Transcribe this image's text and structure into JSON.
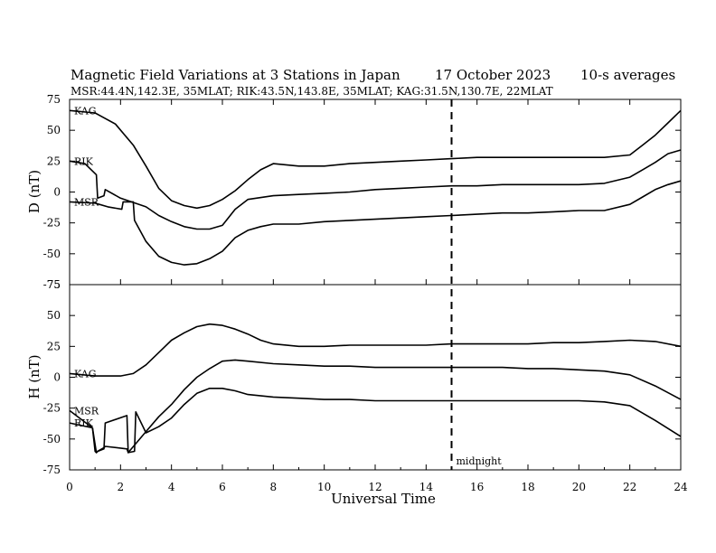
{
  "chart_data": {
    "type": "line",
    "title": "Magnetic Field Variations at 3 Stations in Japan",
    "date": "17 October 2023",
    "averaging": "10-s averages",
    "subtitle": "MSR:44.4N,142.3E, 35MLAT;  RIK:43.5N,143.8E, 35MLAT;  KAG:31.5N,130.7E, 22MLAT",
    "xlabel": "Universal Time",
    "xlim": [
      0,
      24
    ],
    "xticks": [
      "0",
      "2",
      "4",
      "6",
      "8",
      "10",
      "12",
      "14",
      "16",
      "18",
      "20",
      "22",
      "24"
    ],
    "grid": false,
    "legend": "none",
    "annotation": {
      "x": 15,
      "text": "midnight"
    },
    "panels": [
      {
        "ylabel": "D (nT)",
        "ylim": [
          -75,
          75
        ],
        "yticks": [
          "75",
          "50",
          "25",
          "0",
          "-25",
          "-50",
          "-75"
        ],
        "series": [
          {
            "name": "KAG",
            "x": [
              0,
              1,
              1.8,
              2.5,
              3,
              3.5,
              4,
              4.5,
              5,
              5.5,
              6,
              6.5,
              7,
              7.5,
              8,
              8.5,
              9,
              10,
              11,
              12,
              13,
              14,
              15,
              16,
              17,
              18,
              19,
              20,
              21,
              22,
              22.5,
              23,
              23.5,
              24
            ],
            "y": [
              66,
              64,
              55,
              38,
              21,
              3,
              -7,
              -11,
              -13,
              -11,
              -6,
              1,
              10,
              18,
              23,
              22,
              21,
              21,
              23,
              24,
              25,
              26,
              27,
              28,
              28,
              28,
              28,
              28,
              28,
              30,
              38,
              46,
              56,
              66
            ]
          },
          {
            "name": "RIK",
            "x": [
              0,
              0.6,
              1.05,
              1.1,
              1.35,
              1.4,
              2,
              3,
              3.5,
              4,
              4.5,
              5,
              5.5,
              6,
              6.5,
              7,
              8,
              9,
              10,
              11,
              12,
              13,
              14,
              15,
              16,
              17,
              18,
              19,
              20,
              21,
              22,
              22.5,
              23,
              23.5,
              24
            ],
            "y": [
              25,
              23,
              14,
              -5,
              -3,
              2,
              -5,
              -12,
              -19,
              -24,
              -28,
              -30,
              -30,
              -27,
              -14,
              -6,
              -3,
              -2,
              -1,
              0,
              2,
              3,
              4,
              5,
              5,
              6,
              6,
              6,
              6,
              7,
              12,
              18,
              24,
              31,
              34
            ]
          },
          {
            "name": "MSR",
            "x": [
              0,
              1,
              1.5,
              2.05,
              2.1,
              2.5,
              2.55,
              3,
              3.5,
              4,
              4.5,
              5,
              5.5,
              6,
              6.5,
              7,
              7.5,
              8,
              9,
              10,
              11,
              12,
              13,
              14,
              15,
              16,
              17,
              18,
              19,
              20,
              21,
              22,
              22.5,
              23,
              23.5,
              24
            ],
            "y": [
              -8,
              -9,
              -12,
              -14,
              -8,
              -8,
              -23,
              -40,
              -52,
              -57,
              -59,
              -58,
              -54,
              -48,
              -37,
              -31,
              -28,
              -26,
              -26,
              -24,
              -23,
              -22,
              -21,
              -20,
              -19,
              -18,
              -17,
              -17,
              -16,
              -15,
              -15,
              -10,
              -4,
              2,
              6,
              9
            ]
          }
        ]
      },
      {
        "ylabel": "H (nT)",
        "ylim": [
          -75,
          75
        ],
        "yticks": [
          "75",
          "50",
          "25",
          "0",
          "-25",
          "-50",
          "-75"
        ],
        "series": [
          {
            "name": "KAG",
            "x": [
              0,
              1,
              2,
              2.5,
              3,
              3.5,
              4,
              4.5,
              5,
              5.5,
              6,
              6.5,
              7,
              7.5,
              8,
              9,
              10,
              11,
              12,
              13,
              14,
              15,
              16,
              17,
              18,
              19,
              20,
              21,
              22,
              23,
              24
            ],
            "y": [
              3,
              1,
              1,
              3,
              10,
              20,
              30,
              36,
              41,
              43,
              42,
              39,
              35,
              30,
              27,
              25,
              25,
              26,
              26,
              26,
              26,
              27,
              27,
              27,
              27,
              28,
              28,
              29,
              30,
              29,
              25
            ]
          },
          {
            "name": "RIK",
            "x": [
              0,
              0.9,
              1,
              1.05,
              1.1,
              1.35,
              1.4,
              2.25,
              2.3,
              3,
              3.5,
              4,
              4.5,
              5,
              5.5,
              6,
              6.5,
              7,
              8,
              9,
              10,
              11,
              12,
              13,
              14,
              15,
              16,
              17,
              18,
              19,
              20,
              21,
              22,
              23,
              24
            ],
            "y": [
              -37,
              -41,
              -60,
              -61,
              -60,
              -58,
              -37,
              -31,
              -61,
              -44,
              -32,
              -22,
              -10,
              0,
              7,
              13,
              14,
              13,
              11,
              10,
              9,
              9,
              8,
              8,
              8,
              8,
              8,
              8,
              7,
              7,
              6,
              5,
              2,
              -7,
              -18
            ]
          },
          {
            "name": "MSR",
            "x": [
              0,
              0.9,
              1.05,
              1.1,
              1.35,
              1.4,
              2.25,
              2.3,
              2.55,
              2.6,
              3,
              3.5,
              4,
              4.5,
              5,
              5.5,
              6,
              6.5,
              7,
              8,
              9,
              10,
              11,
              12,
              13,
              14,
              15,
              16,
              17,
              18,
              19,
              20,
              21,
              22,
              23,
              24
            ],
            "y": [
              -27,
              -41,
              -61,
              -60,
              -57,
              -56,
              -58,
              -61,
              -60,
              -28,
              -45,
              -40,
              -33,
              -22,
              -13,
              -9,
              -9,
              -11,
              -14,
              -16,
              -17,
              -18,
              -18,
              -19,
              -19,
              -19,
              -19,
              -19,
              -19,
              -19,
              -19,
              -19,
              -20,
              -23,
              -35,
              -48
            ]
          }
        ]
      }
    ],
    "line_color": "#000000"
  }
}
